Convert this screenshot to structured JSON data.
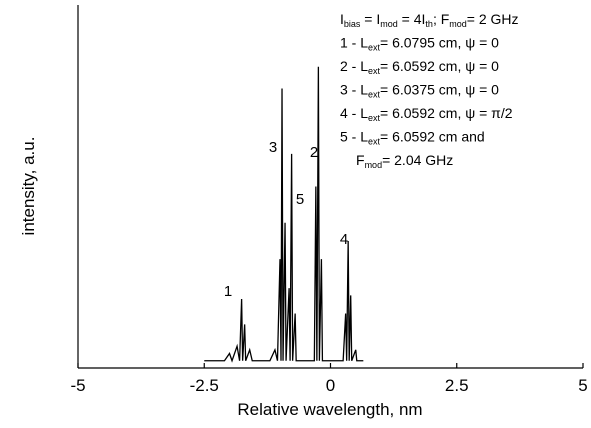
{
  "chart_data": {
    "type": "line",
    "x_label": "Relative wavelength, nm",
    "y_label": "intensity, a.u.",
    "xlim": [
      -5,
      5
    ],
    "xticks": [
      -5,
      -2.5,
      0,
      2.5,
      5
    ],
    "ylim": [
      0,
      1
    ],
    "color": "#000000",
    "x": [
      -2.5,
      -2.1,
      -2.0,
      -1.95,
      -1.85,
      -1.8,
      -1.76,
      -1.74,
      -1.7,
      -1.68,
      -1.6,
      -1.55,
      -1.2,
      -1.1,
      -1.05,
      -1.0,
      -0.98,
      -0.96,
      -0.94,
      -0.9,
      -0.88,
      -0.82,
      -0.8,
      -0.77,
      -0.75,
      -0.7,
      -0.68,
      -0.6,
      -0.32,
      -0.29,
      -0.27,
      -0.24,
      -0.22,
      -0.18,
      -0.16,
      0.25,
      0.3,
      0.32,
      0.35,
      0.37,
      0.4,
      0.42,
      0.5,
      0.52,
      0.65
    ],
    "values": [
      0.02,
      0.02,
      0.04,
      0.02,
      0.06,
      0.02,
      0.19,
      0.02,
      0.12,
      0.02,
      0.05,
      0.02,
      0.02,
      0.05,
      0.02,
      0.3,
      0.02,
      0.77,
      0.02,
      0.4,
      0.02,
      0.22,
      0.02,
      0.59,
      0.02,
      0.15,
      0.02,
      0.02,
      0.02,
      0.5,
      0.02,
      0.83,
      0.02,
      0.3,
      0.02,
      0.02,
      0.15,
      0.02,
      0.35,
      0.02,
      0.2,
      0.02,
      0.05,
      0.02,
      0.02
    ],
    "annotations": [
      "1",
      "3",
      "5",
      "2",
      "4"
    ],
    "legend_lines": [
      [
        "I",
        "bias",
        " = I",
        "mod",
        " = 4I",
        "th",
        "; F",
        "mod",
        "= 2 GHz"
      ],
      [
        "1 - L",
        "ext",
        "= 6.0795 cm, ψ = 0"
      ],
      [
        "2 - L",
        "ext",
        "= 6.0592 cm, ψ = 0"
      ],
      [
        "3 - L",
        "ext",
        "= 6.0375 cm, ψ = 0"
      ],
      [
        "4 - L",
        "ext",
        "= 6.0592 cm, ψ = π/2"
      ],
      [
        "5 - L",
        "ext",
        "= 6.0592 cm and"
      ],
      [
        "F",
        "mod",
        "= 2.04 GHz"
      ]
    ]
  }
}
